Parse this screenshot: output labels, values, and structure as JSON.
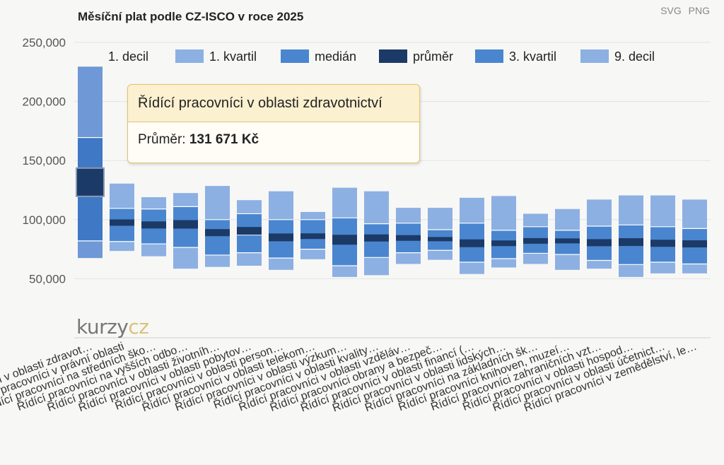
{
  "title": "Měsíční plat podle CZ-ISCO v roce 2025",
  "export": {
    "svg_label": "SVG",
    "png_label": "PNG"
  },
  "tooltip": {
    "title": "Řídící pracovníci v oblasti zdravotnictví",
    "value_label": "Průměr:",
    "value": "131 671 Kč"
  },
  "watermark": {
    "part1": "kurzy",
    "part2": "cz"
  },
  "colors": {
    "band_outer": "#8db0e3",
    "band_inner": "#4a86cf",
    "mean": "#1c3a67",
    "highlight_outer": "#6f98d6",
    "highlight_inner": "#3f78c4",
    "grid": "#e3e3e3",
    "divider": "#ffffff"
  },
  "chart_data": {
    "type": "box",
    "title": "Měsíční plat podle CZ-ISCO v roce 2025",
    "xlabel": "",
    "ylabel": "",
    "ylim": [
      0,
      250000
    ],
    "yticks": [
      50000,
      100000,
      150000,
      200000,
      250000
    ],
    "ytick_labels": [
      "50,000",
      "100,000",
      "150,000",
      "200,000",
      "250,000"
    ],
    "legend": [
      "1. decil",
      "1. kvartil",
      "medián",
      "průměr",
      "3. kvartil",
      "9. decil"
    ],
    "legend_position": "top",
    "grid": true,
    "highlighted_index": 0,
    "categories": [
      "Řídící pracovníci v oblasti zdravot…",
      "Řídící pracovníci v právní oblasti",
      "Řídící pracovníci na středních ško…",
      "Řídící pracovníci na vyšších odbo…",
      "Řídící pracovníci v oblasti životníh…",
      "Řídící pracovníci v oblasti pobytov…",
      "Řídící pracovníci v oblasti person…",
      "Řídící pracovníci v oblasti telekom…",
      "Řídící pracovníci v oblasti výzkum…",
      "Řídící pracovníci v oblasti kvality…",
      "Řídící pracovníci v oblasti vzděláv…",
      "Řídící pracovníci obrany a bezpeč…",
      "Řídící pracovníci v oblasti financí (…",
      "Řídící pracovníci v oblasti lidských…",
      "Řídící pracovníci na základních šk…",
      "Řídící pracovníci knihoven, muzeí…",
      "Řídící pracovníci zahraničních vzt…",
      "Řídící pracovníci v oblasti hospod…",
      "Řídící pracovníci v oblasti účetnict…",
      "Řídící pracovníci v zemědělství, le…"
    ],
    "series": [
      {
        "name": "1. decil",
        "values": [
          67500,
          73500,
          69000,
          58500,
          60000,
          61000,
          57500,
          66500,
          51500,
          53000,
          62500,
          66000,
          54000,
          59500,
          62500,
          57500,
          58500,
          51500,
          54500,
          54500
        ]
      },
      {
        "name": "1. kvartil",
        "values": [
          82000,
          81500,
          79500,
          76500,
          70000,
          72000,
          67500,
          75000,
          61000,
          68000,
          72000,
          74000,
          64000,
          67000,
          71500,
          70500,
          65500,
          62000,
          64000,
          62500
        ]
      },
      {
        "name": "medián",
        "values": [
          131500,
          96000,
          94000,
          94500,
          88500,
          87000,
          84500,
          85500,
          84000,
          84000,
          84000,
          83500,
          80000,
          81500,
          81000,
          81500,
          80500,
          80000,
          79500,
          79500
        ]
      },
      {
        "name": "průměr",
        "values": [
          131671,
          97500,
          95500,
          96000,
          89000,
          90500,
          85000,
          86000,
          83000,
          84500,
          84500,
          83500,
          80000,
          80000,
          82000,
          82000,
          80500,
          81000,
          80000,
          79500
        ]
      },
      {
        "name": "3. kvartil",
        "values": [
          169500,
          109500,
          109000,
          111000,
          100000,
          105000,
          100000,
          100000,
          101500,
          96500,
          97000,
          91500,
          97000,
          91000,
          94000,
          91000,
          94500,
          95500,
          94000,
          92500
        ]
      },
      {
        "name": "9. decil",
        "values": [
          229500,
          130500,
          119000,
          122500,
          128500,
          116500,
          124000,
          106500,
          127000,
          124000,
          110000,
          110000,
          118500,
          120000,
          105000,
          109000,
          117000,
          120500,
          120500,
          117000
        ]
      }
    ]
  }
}
